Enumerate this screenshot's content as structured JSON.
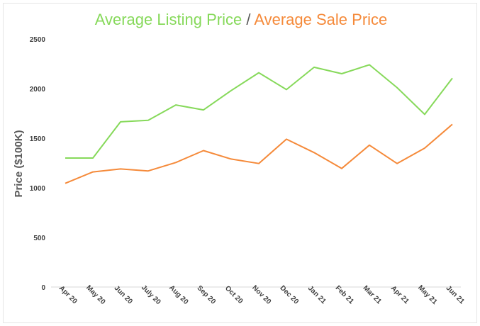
{
  "title": {
    "part1": "Average Listing Price",
    "separator": " / ",
    "part2": "Average Sale Price"
  },
  "colors": {
    "listing": "#86d95a",
    "sale": "#f58a3a",
    "separator": "#595959",
    "axis": "#d9d9d9"
  },
  "chart_data": {
    "type": "line",
    "title": "Average Listing Price / Average Sale Price",
    "xlabel": "",
    "ylabel": "Price ($100K)",
    "ylim": [
      0,
      2500
    ],
    "yticks": [
      0,
      500,
      1000,
      1500,
      2000,
      2500
    ],
    "grid": false,
    "legend": "none",
    "categories": [
      "Apr 20",
      "May 20",
      "Jun 20",
      "July 20",
      "Aug 20",
      "Sep 20",
      "Oct 20",
      "Nov 20",
      "Dec 20",
      "Jan 21",
      "Feb 21",
      "Mar 21",
      "Apr 21",
      "May 21",
      "Jun 21"
    ],
    "series": [
      {
        "name": "Average Listing Price",
        "color": "#86d95a",
        "values": [
          1300,
          1300,
          1665,
          1680,
          1835,
          1785,
          1980,
          2160,
          1990,
          2215,
          2150,
          2240,
          2010,
          1740,
          2105
        ]
      },
      {
        "name": "Average Sale Price",
        "color": "#f58a3a",
        "values": [
          1045,
          1160,
          1190,
          1170,
          1255,
          1375,
          1290,
          1245,
          1490,
          1355,
          1195,
          1430,
          1245,
          1400,
          1640
        ]
      }
    ]
  }
}
